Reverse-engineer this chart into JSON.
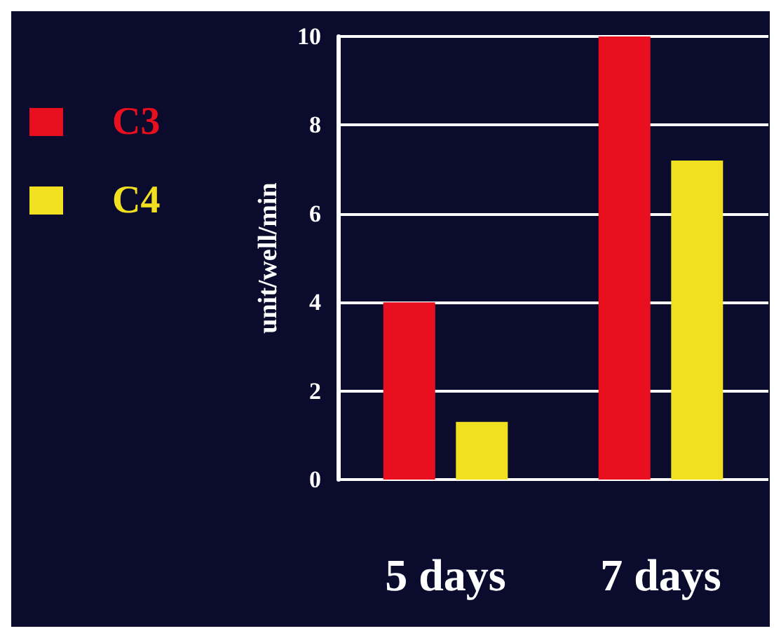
{
  "chart_data": {
    "type": "bar",
    "ylabel": "unit/well/min",
    "categories": [
      "5 days",
      "7 days"
    ],
    "series": [
      {
        "name": "C3",
        "color": "#e8101e",
        "values": [
          4,
          10
        ]
      },
      {
        "name": "C4",
        "color": "#f0e020",
        "values": [
          1.3,
          7.2
        ]
      }
    ],
    "ylim": [
      0,
      10
    ],
    "yticks": [
      0,
      2,
      4,
      6,
      8,
      10
    ],
    "grid": "y",
    "legend": "left"
  }
}
